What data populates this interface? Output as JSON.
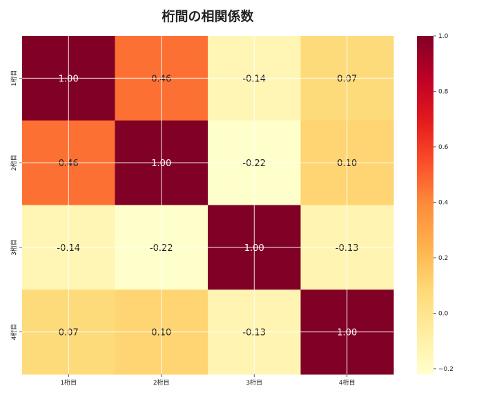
{
  "chart_data": {
    "type": "heatmap",
    "title": "桁間の相関係数",
    "row_labels": [
      "1桁目",
      "2桁目",
      "3桁目",
      "4桁目"
    ],
    "col_labels": [
      "1桁目",
      "2桁目",
      "3桁目",
      "4桁目"
    ],
    "values": [
      [
        1.0,
        0.46,
        -0.14,
        0.07
      ],
      [
        0.46,
        1.0,
        -0.22,
        0.1
      ],
      [
        -0.14,
        -0.22,
        1.0,
        -0.13
      ],
      [
        0.07,
        0.1,
        -0.13,
        1.0
      ]
    ],
    "value_format": "0.00",
    "colormap": "YlOrRd",
    "vmin": -0.22,
    "vmax": 1.0,
    "colorbar_ticks": [
      1.0,
      0.8,
      0.6,
      0.4,
      0.2,
      0.0,
      -0.2
    ],
    "colorbar_tick_labels": [
      "1.0",
      "0.8",
      "0.6",
      "0.4",
      "0.2",
      "0.0",
      "−0.2"
    ],
    "grid": true,
    "colorbar_position": "right"
  }
}
